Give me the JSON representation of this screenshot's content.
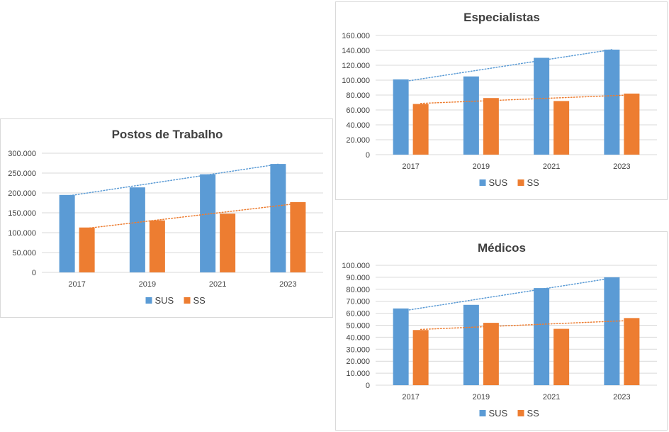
{
  "colors": {
    "sus": "#5b9bd5",
    "ss": "#ed7d31",
    "grid": "#d9d9d9"
  },
  "chart_data": [
    {
      "id": "postos",
      "type": "bar",
      "title": "Postos de Trabalho",
      "categories": [
        "2017",
        "2019",
        "2021",
        "2023"
      ],
      "series": [
        {
          "name": "SUS",
          "values": [
            195000,
            214000,
            247000,
            273000
          ]
        },
        {
          "name": "SS",
          "values": [
            113000,
            131000,
            148000,
            177000
          ]
        }
      ],
      "trendlines": true,
      "ylim": [
        0,
        300000
      ],
      "yticks": [
        "0",
        "50.000",
        "100.000",
        "150.000",
        "200.000",
        "250.000",
        "300.000"
      ],
      "grid": true,
      "legend_position": "bottom"
    },
    {
      "id": "especialistas",
      "type": "bar",
      "title": "Especialistas",
      "categories": [
        "2017",
        "2019",
        "2021",
        "2023"
      ],
      "series": [
        {
          "name": "SUS",
          "values": [
            101000,
            105000,
            130000,
            141000
          ]
        },
        {
          "name": "SS",
          "values": [
            68000,
            76000,
            72000,
            82000
          ]
        }
      ],
      "trendlines": true,
      "ylim": [
        0,
        160000
      ],
      "yticks": [
        "0",
        "20.000",
        "40.000",
        "60.000",
        "80.000",
        "100.000",
        "120.000",
        "140.000",
        "160.000"
      ],
      "grid": true,
      "legend_position": "bottom"
    },
    {
      "id": "medicos",
      "type": "bar",
      "title": "Médicos",
      "categories": [
        "2017",
        "2019",
        "2021",
        "2023"
      ],
      "series": [
        {
          "name": "SUS",
          "values": [
            64000,
            67000,
            81000,
            90000
          ]
        },
        {
          "name": "SS",
          "values": [
            46000,
            52000,
            47000,
            56000
          ]
        }
      ],
      "trendlines": true,
      "ylim": [
        0,
        100000
      ],
      "yticks": [
        "0",
        "10.000",
        "20.000",
        "30.000",
        "40.000",
        "50.000",
        "60.000",
        "70.000",
        "80.000",
        "90.000",
        "100.000"
      ],
      "grid": true,
      "legend_position": "bottom"
    }
  ]
}
